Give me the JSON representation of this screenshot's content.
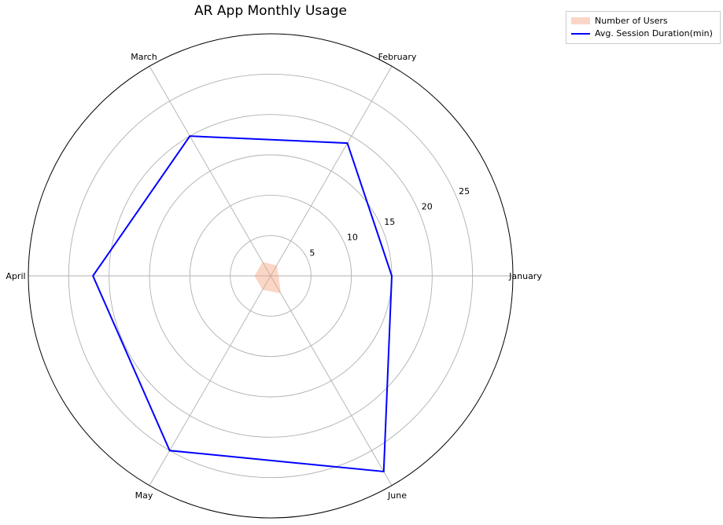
{
  "chart_data": {
    "type": "radar",
    "title": "AR App Monthly Usage",
    "categories": [
      "January",
      "February",
      "March",
      "April",
      "May",
      "June"
    ],
    "radial_ticks": [
      5,
      10,
      15,
      20,
      25
    ],
    "rlim": [
      0,
      30
    ],
    "grid": true,
    "legend_position": "outside top-right",
    "series": [
      {
        "name": "Number of Users",
        "values": [
          1,
          1.5,
          2,
          2,
          2,
          2.5
        ],
        "style": "filled area",
        "color": "#f4a582"
      },
      {
        "name": "Avg. Session Duration(min)",
        "values": [
          15,
          19,
          20,
          22,
          25,
          28
        ],
        "style": "line",
        "color": "#0000ff"
      }
    ]
  },
  "colors": {
    "users_fill": "#f4a582",
    "session_line": "#0000ff",
    "grid": "#b0b0b0",
    "frame": "#000000"
  }
}
